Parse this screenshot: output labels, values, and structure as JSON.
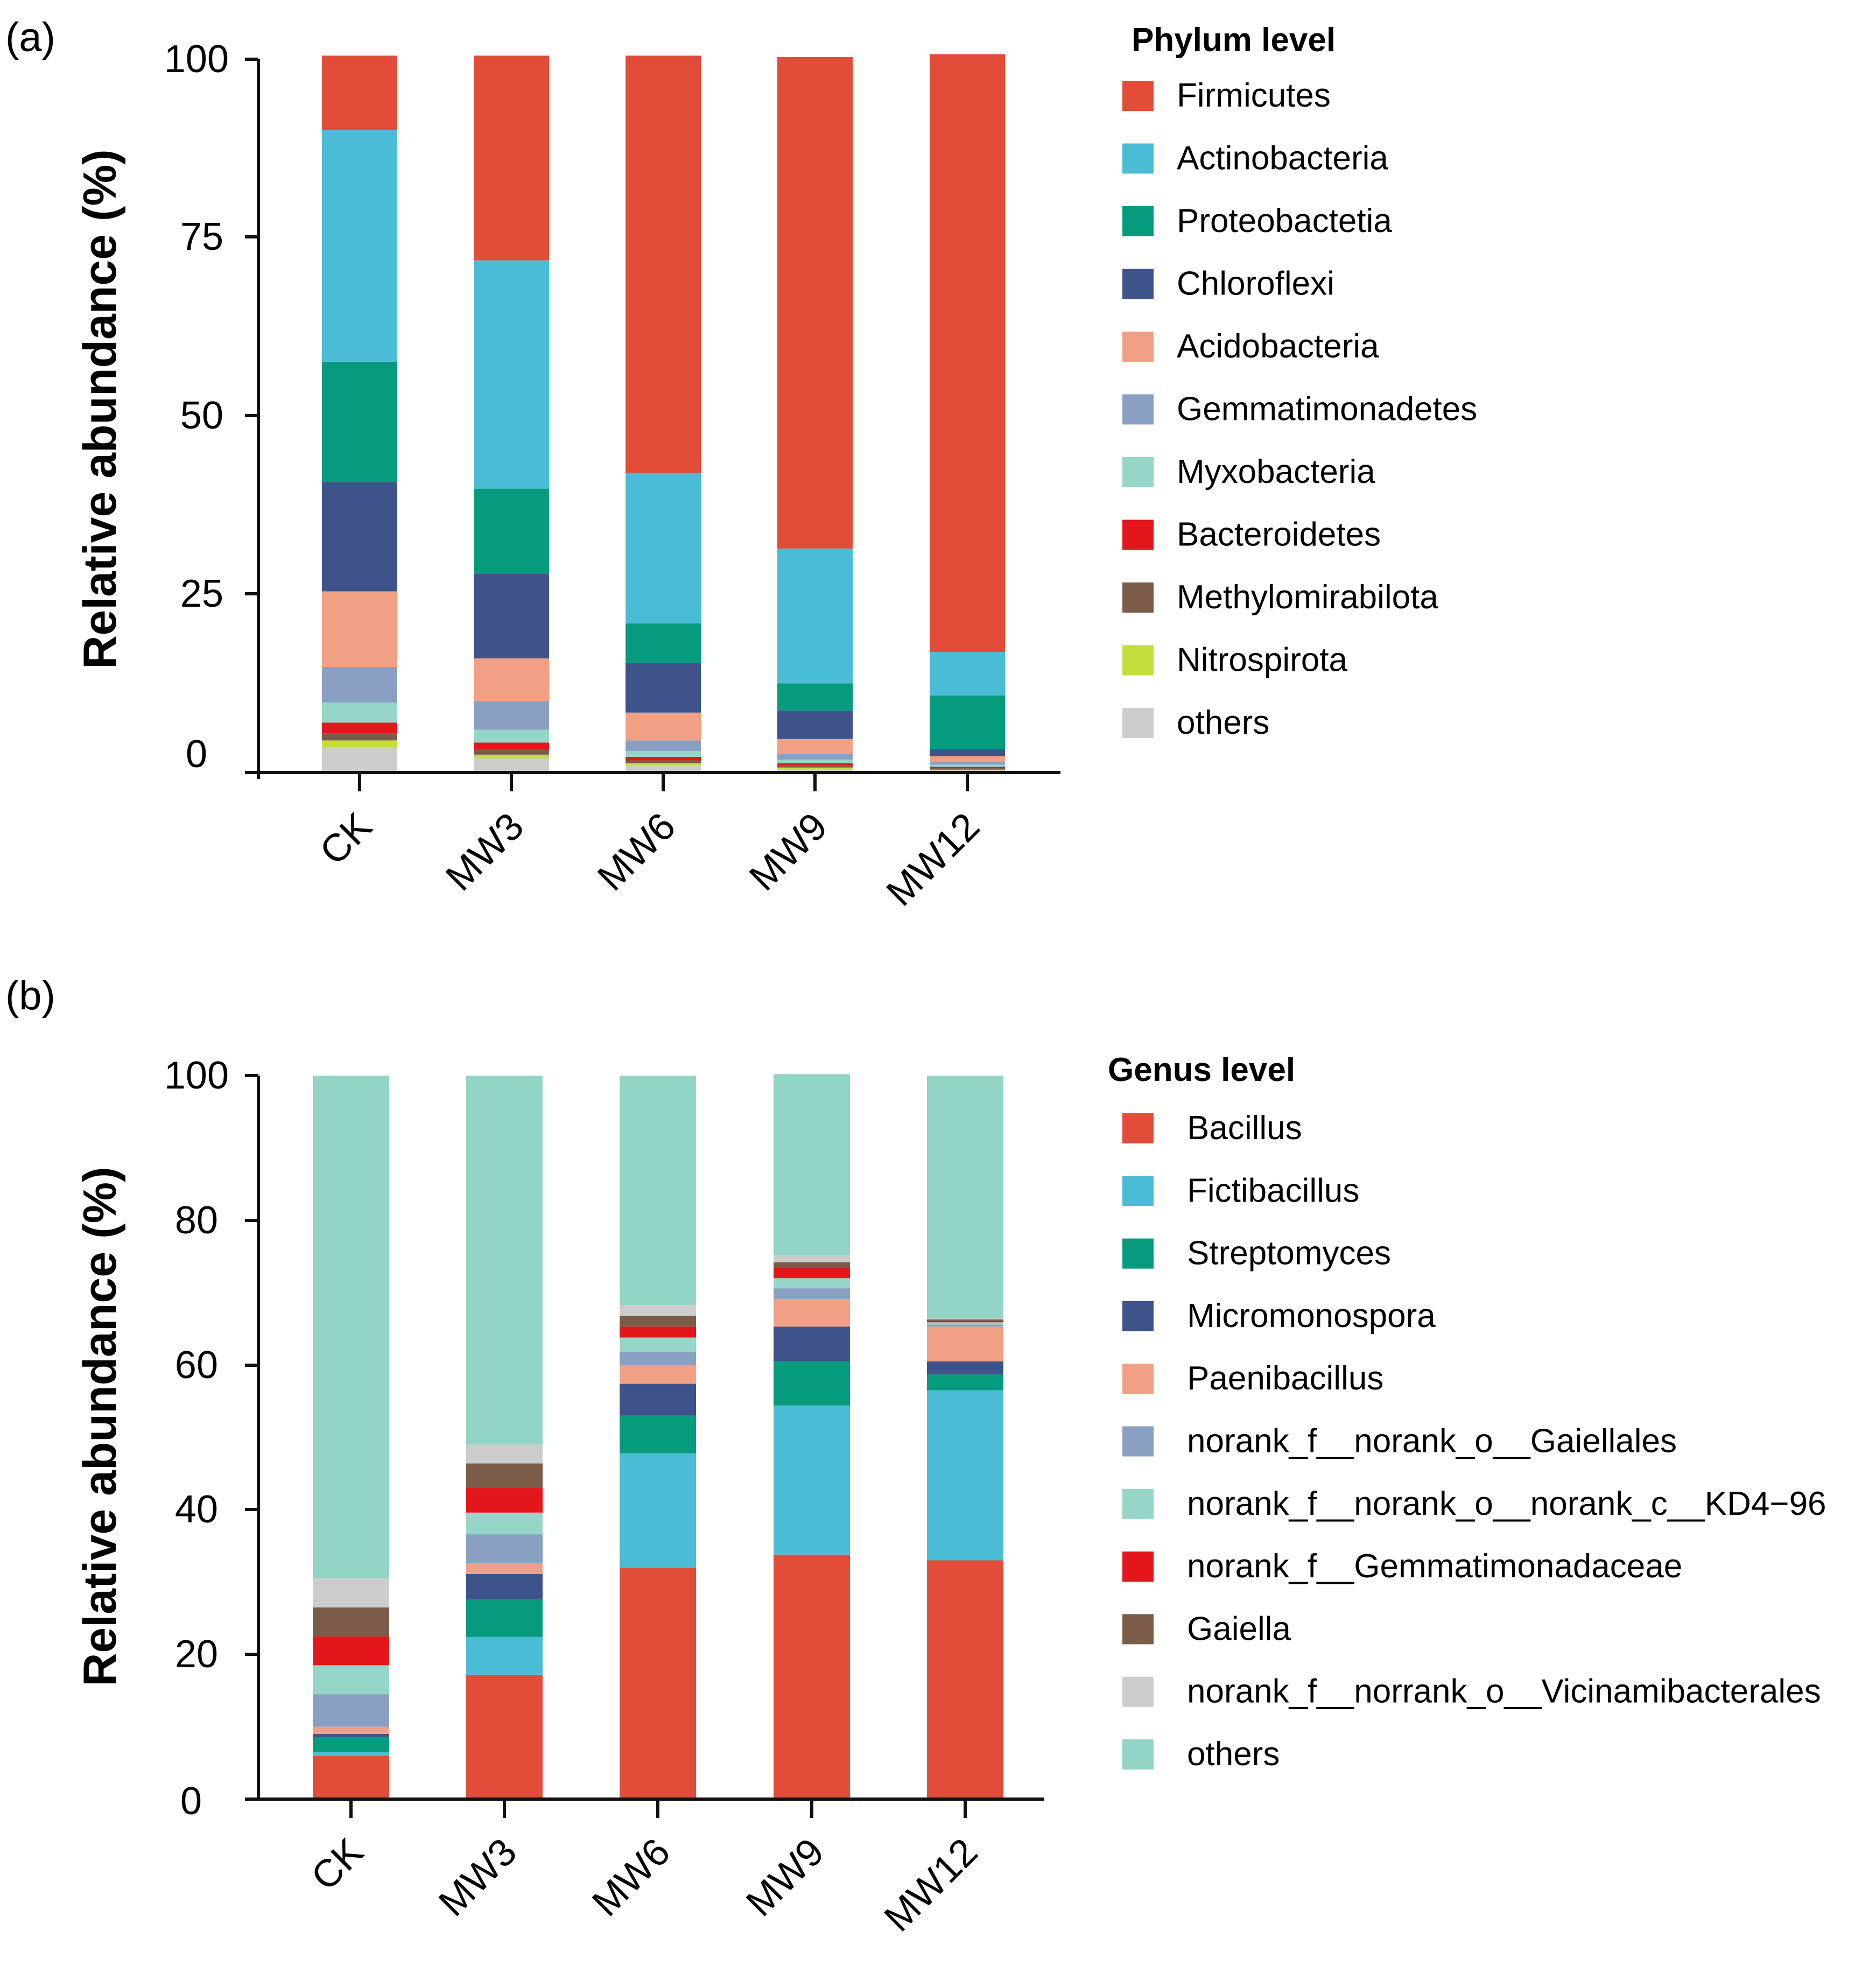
{
  "chart_data": [
    {
      "panel_label": "(a)",
      "type": "stacked-bar",
      "ylabel": "Relative abundance (%)",
      "ylim": [
        0,
        100
      ],
      "yticks": [
        "0",
        "25",
        "50",
        "75",
        "100"
      ],
      "categories": [
        "CK",
        "MW3",
        "MW6",
        "MW9",
        "MW12"
      ],
      "legend_title": "Phylum level",
      "legend_placement": "right",
      "series": [
        {
          "name": "others",
          "color": "#cdcdcd",
          "values": [
            3.5,
            2.0,
            1.0,
            0.5,
            0.3
          ]
        },
        {
          "name": "Nitrospirota",
          "color": "#c5dd3a",
          "values": [
            1.0,
            0.5,
            0.3,
            0.2,
            0.1
          ]
        },
        {
          "name": "Methylomirabilota",
          "color": "#7b5c48",
          "values": [
            1.0,
            0.7,
            0.4,
            0.3,
            0.2
          ]
        },
        {
          "name": "Bacteroidetes",
          "color": "#e2161b",
          "values": [
            1.5,
            1.0,
            0.5,
            0.3,
            0.2
          ]
        },
        {
          "name": "Myxobacteria",
          "color": "#96d6c8",
          "values": [
            2.8,
            1.8,
            0.8,
            0.5,
            0.3
          ]
        },
        {
          "name": "Gemmatimonadetes",
          "color": "#8aa0c2",
          "values": [
            5.0,
            4.0,
            1.5,
            0.8,
            0.4
          ]
        },
        {
          "name": "Acidobacteria",
          "color": "#f1a085",
          "values": [
            10.6,
            6.0,
            3.9,
            2.1,
            0.8
          ]
        },
        {
          "name": "Chloroflexi",
          "color": "#3e5389",
          "values": [
            15.3,
            11.9,
            7.0,
            4.0,
            1.0
          ]
        },
        {
          "name": "Proteobactetia",
          "color": "#079b7e",
          "values": [
            16.9,
            11.9,
            5.5,
            3.8,
            7.5
          ]
        },
        {
          "name": "Actinobacteria",
          "color": "#4bbcd6",
          "values": [
            32.5,
            32.0,
            21.1,
            18.9,
            6.1
          ]
        },
        {
          "name": "Firmicutes",
          "color": "#e24d39",
          "values": [
            10.4,
            28.7,
            58.5,
            68.9,
            83.8
          ]
        }
      ]
    },
    {
      "panel_label": "(b)",
      "type": "stacked-bar",
      "ylabel": "Relative abundance (%)",
      "ylim": [
        0,
        100
      ],
      "yticks": [
        "0",
        "20",
        "40",
        "60",
        "80",
        "100"
      ],
      "categories": [
        "CK",
        "MW3",
        "MW6",
        "MW9",
        "MW12"
      ],
      "legend_title": "Genus level",
      "legend_placement": "right",
      "series": [
        {
          "name": "Bacillus",
          "color": "#e24d39",
          "values": [
            6.0,
            17.2,
            32.0,
            33.8,
            33.0
          ]
        },
        {
          "name": "Fictibacillus",
          "color": "#4bbcd6",
          "values": [
            0.5,
            5.2,
            15.8,
            20.6,
            23.5
          ]
        },
        {
          "name": "Streptomyces",
          "color": "#079b7e",
          "values": [
            2.0,
            5.2,
            5.2,
            6.1,
            2.2
          ]
        },
        {
          "name": "Micromonospora",
          "color": "#3e5389",
          "values": [
            0.5,
            3.5,
            4.4,
            4.8,
            1.8
          ]
        },
        {
          "name": "Paenibacillus",
          "color": "#f1a085",
          "values": [
            1.0,
            1.5,
            2.6,
            3.8,
            4.8
          ]
        },
        {
          "name": "norank_f__norank_o__Gaiellales",
          "color": "#8aa0c2",
          "values": [
            4.5,
            4.0,
            1.8,
            1.5,
            0.3
          ]
        },
        {
          "name": "norank_f__norank_o__norank_c__KD4−96",
          "color": "#96d6c8",
          "values": [
            4.0,
            3.0,
            2.0,
            1.4,
            0.3
          ]
        },
        {
          "name": "norank_f__Gemmatimonadaceae",
          "color": "#e2161b",
          "values": [
            4.0,
            3.4,
            1.5,
            1.4,
            0.2
          ]
        },
        {
          "name": "Gaiella",
          "color": "#7b5c48",
          "values": [
            4.0,
            3.4,
            1.5,
            0.8,
            0.2
          ]
        },
        {
          "name": "norank_f__norrank_o__Vicinamibacterales",
          "color": "#cdcdcd",
          "values": [
            4.0,
            2.6,
            1.5,
            1.0,
            0.2
          ]
        },
        {
          "name": "others",
          "color": "#92d4c6",
          "values": [
            69.5,
            51.0,
            31.7,
            25.0,
            33.5
          ]
        }
      ]
    }
  ]
}
